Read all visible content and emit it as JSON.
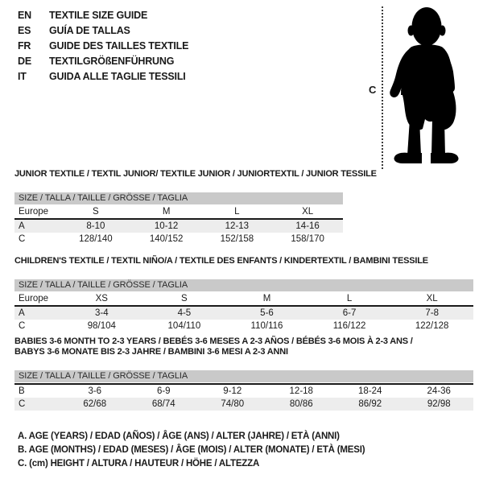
{
  "colors": {
    "background": "#ffffff",
    "text": "#1a1a1a",
    "size_bar_bg": "#c9c9c9",
    "row_shaded_bg": "#ededed",
    "divider": "#1a1a1a",
    "silhouette": "#000000",
    "dotted_line": "#3c3c3c"
  },
  "header": {
    "languages": [
      {
        "code": "EN",
        "title": "TEXTILE SIZE GUIDE"
      },
      {
        "code": "ES",
        "title": "GUÍA DE TALLAS"
      },
      {
        "code": "FR",
        "title": "GUIDE DES TAILLES TEXTILE"
      },
      {
        "code": "DE",
        "title": "TEXTILGRÖßENFÜHRUNG"
      },
      {
        "code": "IT",
        "title": "GUIDA ALLE TAGLIE TESSILI"
      }
    ],
    "figure": {
      "icon": "baby-silhouette-icon",
      "measure_label": "C"
    }
  },
  "tables": [
    {
      "title_lines": [
        "JUNIOR TEXTILE / TEXTIL JUNIOR/ TEXTILE JUNIOR / JUNIORTEXTIL / JUNIOR TESSILE"
      ],
      "size_header": "SIZE / TALLA / TAILLE / GRÖSSE / TAGLIA",
      "columns": [
        "Europe",
        "S",
        "M",
        "L",
        "XL"
      ],
      "rows": [
        {
          "label": "A",
          "values": [
            "8-10",
            "10-12",
            "12-13",
            "14-16"
          ],
          "shaded": true
        },
        {
          "label": "C",
          "values": [
            "128/140",
            "140/152",
            "152/158",
            "158/170"
          ],
          "shaded": false
        }
      ]
    },
    {
      "title_lines": [
        "CHILDREN'S TEXTILE / TEXTIL NIÑO/A / TEXTILE DES ENFANTS / KINDERTEXTIL / BAMBINI TESSILE"
      ],
      "size_header": "SIZE / TALLA / TAILLE / GRÖSSE / TAGLIA",
      "columns": [
        "Europe",
        "XS",
        "S",
        "M",
        "L",
        "XL"
      ],
      "rows": [
        {
          "label": "A",
          "values": [
            "3-4",
            "4-5",
            "5-6",
            "6-7",
            "7-8"
          ],
          "shaded": true
        },
        {
          "label": "C",
          "values": [
            "98/104",
            "104/110",
            "110/116",
            "116/122",
            "122/128"
          ],
          "shaded": false
        }
      ]
    },
    {
      "title_lines": [
        "BABIES 3-6 MONTH TO 2-3 YEARS / BEBÉS 3-6 MESES A 2-3 AÑOS / BÉBÉS 3-6 MOIS À 2-3 ANS /",
        "BABYS 3-6 MONATE BIS 2-3 JAHRE / BAMBINI 3-6 MESI A 2-3 ANNI"
      ],
      "size_header": "SIZE / TALLA / TAILLE / GRÖSSE / TAGLIA",
      "columns": [],
      "rows": [
        {
          "label": "B",
          "values": [
            "3-6",
            "6-9",
            "9-12",
            "12-18",
            "18-24",
            "24-36"
          ],
          "shaded": false
        },
        {
          "label": "C",
          "values": [
            "62/68",
            "68/74",
            "74/80",
            "80/86",
            "86/92",
            "92/98"
          ],
          "shaded": true
        }
      ]
    }
  ],
  "footnotes": [
    "A. AGE (YEARS) / EDAD (AÑOS) / ÂGE (ANS) / ALTER (JAHRE) / ETÀ (ANNI)",
    "B. AGE (MONTHS) / EDAD (MESES) / ÂGE (MOIS) / ALTER (MONATE) / ETÀ (MESI)",
    "C. (cm) HEIGHT / ALTURA / HAUTEUR / HÖHE / ALTEZZA"
  ]
}
